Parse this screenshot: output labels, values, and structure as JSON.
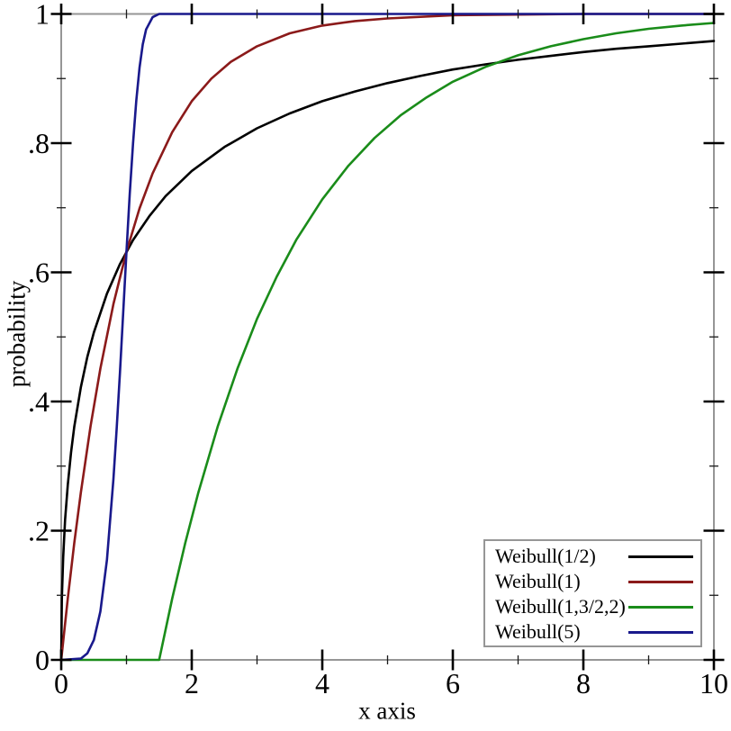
{
  "figure": {
    "background": "#ffffff",
    "axis_color": "#969696",
    "tick_color": "#000000",
    "minor_tick_color": "#1a1a1a",
    "text_color": "#000000",
    "legend_border_color": "#969696"
  },
  "chart_data": {
    "type": "line",
    "title": "",
    "xlabel": "x axis",
    "ylabel": "probability",
    "xlim": [
      0,
      10
    ],
    "ylim": [
      0,
      1
    ],
    "grid": false,
    "legend": {
      "position": "bottom-right"
    },
    "xticks": {
      "major": [
        0,
        2,
        4,
        6,
        8,
        10
      ],
      "labels": [
        "0",
        "2",
        "4",
        "6",
        "8",
        "10"
      ],
      "minor": [
        1,
        3,
        5,
        7,
        9
      ]
    },
    "yticks": {
      "major": [
        0,
        0.2,
        0.4,
        0.6,
        0.8,
        1
      ],
      "labels": [
        "0",
        ".2",
        ".4",
        ".6",
        ".8",
        "1"
      ],
      "minor": [
        0.1,
        0.3,
        0.5,
        0.7,
        0.9
      ]
    },
    "series": [
      {
        "name": "Weibull(1/2)",
        "color": "#000000",
        "points": [
          [
            0,
            0
          ],
          [
            0.01,
            0.095
          ],
          [
            0.03,
            0.159
          ],
          [
            0.06,
            0.217
          ],
          [
            0.1,
            0.271
          ],
          [
            0.15,
            0.321
          ],
          [
            0.2,
            0.361
          ],
          [
            0.3,
            0.422
          ],
          [
            0.4,
            0.469
          ],
          [
            0.5,
            0.507
          ],
          [
            0.7,
            0.567
          ],
          [
            0.9,
            0.613
          ],
          [
            1.1,
            0.65
          ],
          [
            1.35,
            0.687
          ],
          [
            1.6,
            0.718
          ],
          [
            2,
            0.757
          ],
          [
            2.5,
            0.794
          ],
          [
            3,
            0.823
          ],
          [
            3.5,
            0.846
          ],
          [
            4,
            0.865
          ],
          [
            4.5,
            0.88
          ],
          [
            5,
            0.893
          ],
          [
            5.5,
            0.904
          ],
          [
            6,
            0.914
          ],
          [
            6.5,
            0.922
          ],
          [
            7,
            0.929
          ],
          [
            7.5,
            0.935
          ],
          [
            8,
            0.941
          ],
          [
            8.5,
            0.946
          ],
          [
            9,
            0.95
          ],
          [
            9.5,
            0.954
          ],
          [
            10,
            0.958
          ]
        ]
      },
      {
        "name": "Weibull(1)",
        "color": "#8b1a1a",
        "points": [
          [
            0,
            0
          ],
          [
            0.1,
            0.095
          ],
          [
            0.2,
            0.181
          ],
          [
            0.3,
            0.259
          ],
          [
            0.45,
            0.362
          ],
          [
            0.6,
            0.451
          ],
          [
            0.8,
            0.551
          ],
          [
            1,
            0.632
          ],
          [
            1.2,
            0.699
          ],
          [
            1.4,
            0.753
          ],
          [
            1.7,
            0.817
          ],
          [
            2,
            0.865
          ],
          [
            2.3,
            0.9
          ],
          [
            2.6,
            0.926
          ],
          [
            3,
            0.95
          ],
          [
            3.5,
            0.97
          ],
          [
            4,
            0.982
          ],
          [
            4.5,
            0.989
          ],
          [
            5,
            0.993
          ],
          [
            6,
            0.998
          ],
          [
            7,
            0.999
          ],
          [
            8,
            1
          ],
          [
            10,
            1
          ]
        ]
      },
      {
        "name": "Weibull(1,3/2,2)",
        "color": "#1a8c1a",
        "points": [
          [
            0,
            0
          ],
          [
            1.5,
            0
          ],
          [
            1.7,
            0.095
          ],
          [
            1.9,
            0.181
          ],
          [
            2.1,
            0.259
          ],
          [
            2.4,
            0.362
          ],
          [
            2.7,
            0.451
          ],
          [
            3,
            0.528
          ],
          [
            3.3,
            0.593
          ],
          [
            3.6,
            0.65
          ],
          [
            4,
            0.713
          ],
          [
            4.4,
            0.765
          ],
          [
            4.8,
            0.808
          ],
          [
            5.2,
            0.843
          ],
          [
            5.6,
            0.871
          ],
          [
            6,
            0.895
          ],
          [
            6.5,
            0.918
          ],
          [
            7,
            0.936
          ],
          [
            7.5,
            0.95
          ],
          [
            8,
            0.961
          ],
          [
            8.5,
            0.97
          ],
          [
            9,
            0.977
          ],
          [
            9.5,
            0.982
          ],
          [
            10,
            0.986
          ]
        ]
      },
      {
        "name": "Weibull(5)",
        "color": "#19198c",
        "points": [
          [
            0,
            0
          ],
          [
            0.3,
            0.002
          ],
          [
            0.4,
            0.01
          ],
          [
            0.5,
            0.031
          ],
          [
            0.6,
            0.075
          ],
          [
            0.7,
            0.155
          ],
          [
            0.8,
            0.28
          ],
          [
            0.85,
            0.358
          ],
          [
            0.9,
            0.446
          ],
          [
            0.95,
            0.539
          ],
          [
            1,
            0.632
          ],
          [
            1.05,
            0.721
          ],
          [
            1.1,
            0.8
          ],
          [
            1.15,
            0.866
          ],
          [
            1.2,
            0.917
          ],
          [
            1.25,
            0.953
          ],
          [
            1.3,
            0.976
          ],
          [
            1.4,
            0.995
          ],
          [
            1.5,
            1
          ],
          [
            2,
            1
          ],
          [
            10,
            1
          ]
        ]
      }
    ]
  }
}
